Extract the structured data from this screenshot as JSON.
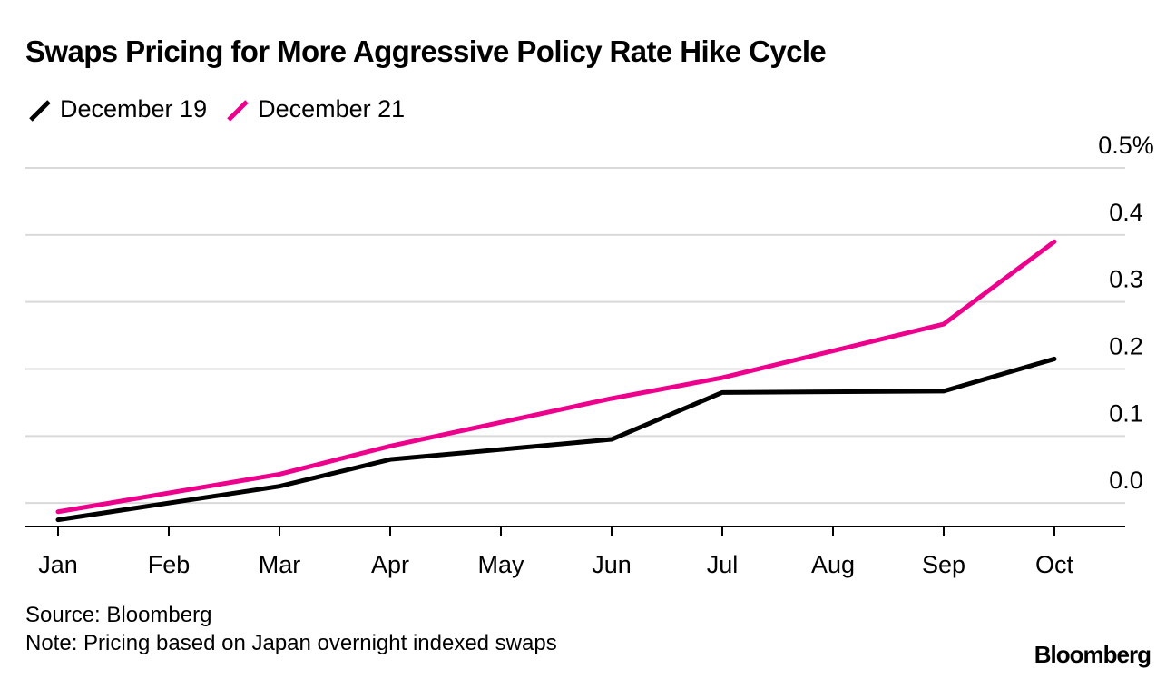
{
  "colors": {
    "background": "#ffffff",
    "grid": "#d9d9d9",
    "axis": "#000000"
  },
  "footer": {
    "source": "Source: Bloomberg",
    "note": "Note: Pricing based on Japan overnight indexed swaps",
    "brand": "Bloomberg"
  },
  "chart_data": {
    "type": "line",
    "title": "Swaps Pricing for More Aggressive Policy Rate Hike Cycle",
    "xlabel": "",
    "ylabel": "",
    "categories": [
      "Jan",
      "Feb",
      "Mar",
      "Apr",
      "May",
      "Jun",
      "Jul",
      "Aug",
      "Sep",
      "Oct"
    ],
    "ylim": [
      -0.035,
      0.5
    ],
    "yticks": [
      0.0,
      0.1,
      0.2,
      0.3,
      0.4,
      0.5
    ],
    "ytick_labels": [
      "0.0",
      "0.1",
      "0.2",
      "0.3",
      "0.4",
      "0.5%"
    ],
    "grid": true,
    "legend_position": "top-left",
    "series": [
      {
        "name": "December 19",
        "color": "#000000",
        "points": [
          [
            0,
            -0.025
          ],
          [
            2,
            0.025
          ],
          [
            3,
            0.065
          ],
          [
            5,
            0.095
          ],
          [
            6,
            0.165
          ],
          [
            8,
            0.167
          ],
          [
            9,
            0.215
          ]
        ]
      },
      {
        "name": "December 21",
        "color": "#ec008c",
        "points": [
          [
            0,
            -0.013
          ],
          [
            2,
            0.043
          ],
          [
            3,
            0.085
          ],
          [
            5,
            0.156
          ],
          [
            6,
            0.187
          ],
          [
            8,
            0.267
          ],
          [
            9,
            0.39
          ]
        ]
      }
    ]
  }
}
